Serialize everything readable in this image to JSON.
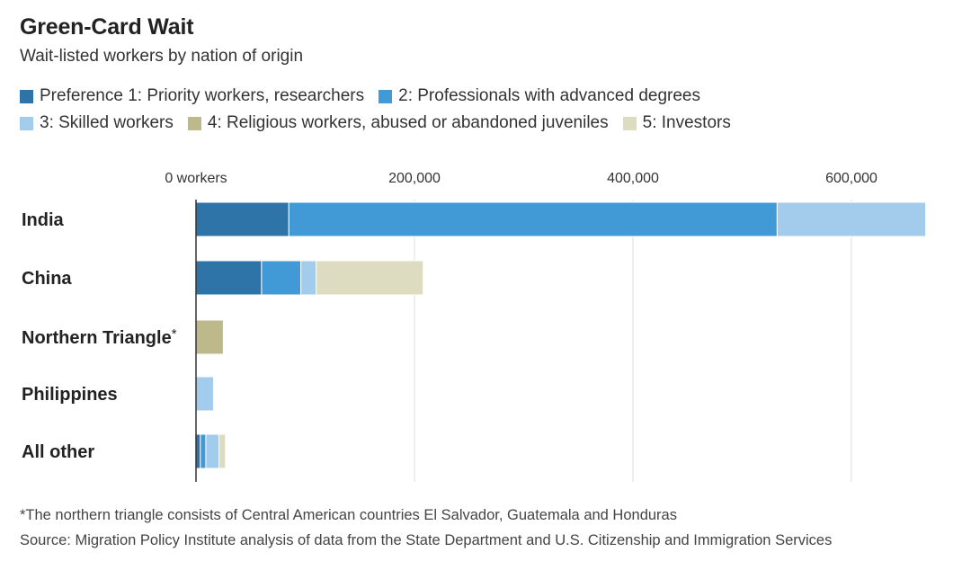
{
  "header": {
    "title": "Green-Card Wait",
    "subtitle": "Wait-listed workers by nation of origin"
  },
  "colors": {
    "pref1": "#2E74A9",
    "pref2": "#4199D6",
    "pref3": "#A3CBEB",
    "pref4": "#BDB98A",
    "pref5": "#DEDCC0",
    "grid": "#DDDDDD",
    "axis": "#333333"
  },
  "chart_data": {
    "type": "bar",
    "orientation": "horizontal",
    "stacked": true,
    "title": "Green-Card Wait",
    "subtitle": "Wait-listed workers by nation of origin",
    "categories": [
      "India",
      "China",
      "Northern Triangle",
      "Philippines",
      "All other"
    ],
    "category_marks": [
      "",
      "",
      "*",
      "",
      ""
    ],
    "series": [
      {
        "name": "Preference 1: Priority workers, researchers",
        "color": "#2E74A9",
        "values": [
          85000,
          60000,
          0,
          0,
          4000
        ]
      },
      {
        "name": "2: Professionals with advanced degrees",
        "color": "#4199D6",
        "values": [
          447000,
          36000,
          0,
          0,
          5000
        ]
      },
      {
        "name": "3: Skilled workers",
        "color": "#A3CBEB",
        "values": [
          136000,
          14000,
          0,
          16000,
          12000
        ]
      },
      {
        "name": "4: Religious workers, abused or abandoned juveniles",
        "color": "#BDB98A",
        "values": [
          0,
          0,
          25000,
          0,
          0
        ]
      },
      {
        "name": "5: Investors",
        "color": "#DEDCC0",
        "values": [
          0,
          98000,
          0,
          0,
          6000
        ]
      }
    ],
    "xticks": [
      0,
      200000,
      400000,
      600000
    ],
    "xtick_labels": [
      "0 workers",
      "200,000",
      "400,000",
      "600,000"
    ],
    "xlim": [
      0,
      680000
    ],
    "grid": true,
    "legend_position": "top"
  },
  "notes": {
    "footnote": "*The northern triangle consists of Central American countries El Salvador, Guatemala and Honduras",
    "source": "Source: Migration Policy Institute analysis of data from the State Department and U.S. Citizenship and Immigration Services"
  }
}
